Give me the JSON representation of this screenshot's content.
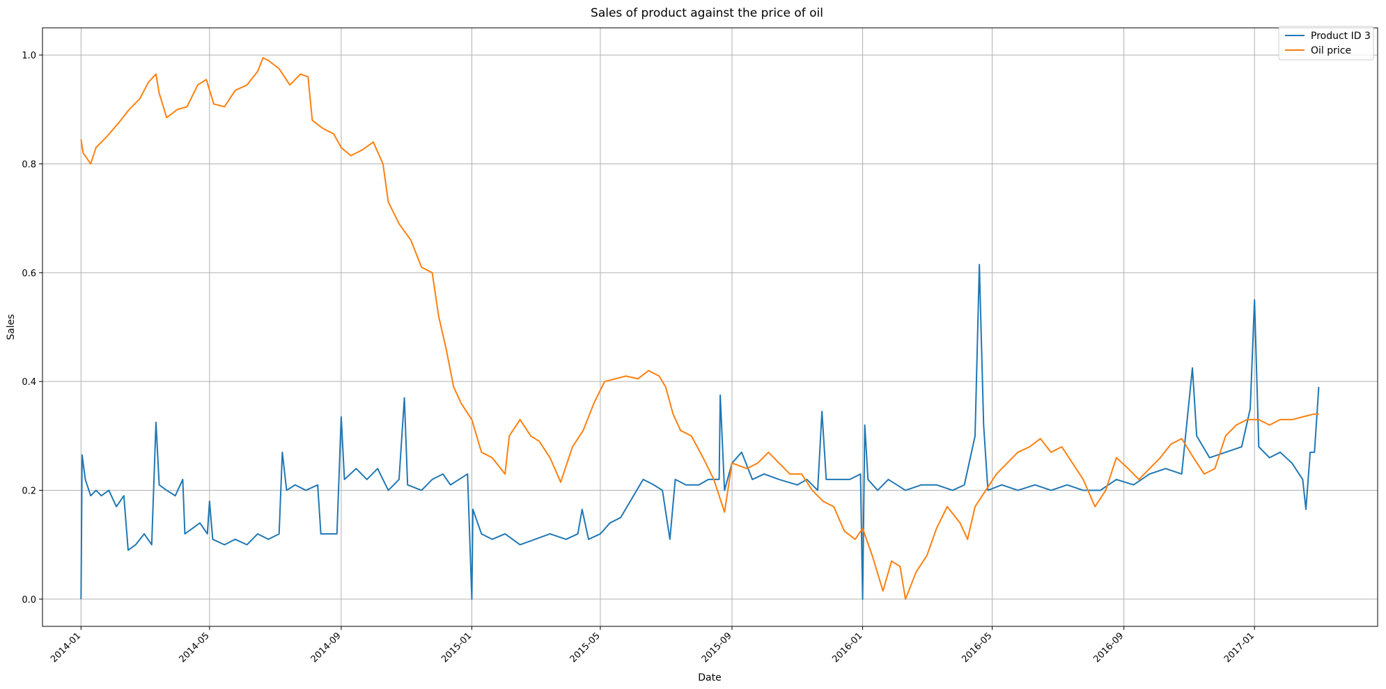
{
  "chart_data": {
    "type": "line",
    "title": "Sales of product against the price of oil",
    "xlabel": "Date",
    "ylabel": "Sales",
    "xlim": [
      "2013-11-26",
      "2017-04-26"
    ],
    "ylim": [
      -0.05,
      1.05
    ],
    "x_ticks": [
      "2014-01",
      "2014-05",
      "2014-09",
      "2015-01",
      "2015-05",
      "2015-09",
      "2016-01",
      "2016-05",
      "2016-09",
      "2017-01"
    ],
    "y_ticks": [
      "0.0",
      "0.2",
      "0.4",
      "0.6",
      "0.8",
      "1.0"
    ],
    "grid": true,
    "legend_position": "top-right",
    "series": [
      {
        "name": "Product ID 3",
        "color": "#1f77b4",
        "points": [
          [
            "2014-01-01",
            0.0
          ],
          [
            "2014-01-02",
            0.265
          ],
          [
            "2014-01-05",
            0.22
          ],
          [
            "2014-01-10",
            0.19
          ],
          [
            "2014-01-15",
            0.2
          ],
          [
            "2014-01-20",
            0.19
          ],
          [
            "2014-01-27",
            0.2
          ],
          [
            "2014-02-03",
            0.17
          ],
          [
            "2014-02-10",
            0.19
          ],
          [
            "2014-02-14",
            0.09
          ],
          [
            "2014-02-21",
            0.1
          ],
          [
            "2014-03-01",
            0.12
          ],
          [
            "2014-03-08",
            0.1
          ],
          [
            "2014-03-12",
            0.325
          ],
          [
            "2014-03-15",
            0.21
          ],
          [
            "2014-03-22",
            0.2
          ],
          [
            "2014-03-30",
            0.19
          ],
          [
            "2014-04-06",
            0.22
          ],
          [
            "2014-04-08",
            0.12
          ],
          [
            "2014-04-15",
            0.13
          ],
          [
            "2014-04-22",
            0.14
          ],
          [
            "2014-04-29",
            0.12
          ],
          [
            "2014-05-01",
            0.18
          ],
          [
            "2014-05-04",
            0.11
          ],
          [
            "2014-05-15",
            0.1
          ],
          [
            "2014-05-25",
            0.11
          ],
          [
            "2014-06-05",
            0.1
          ],
          [
            "2014-06-15",
            0.12
          ],
          [
            "2014-06-25",
            0.11
          ],
          [
            "2014-07-05",
            0.12
          ],
          [
            "2014-07-08",
            0.27
          ],
          [
            "2014-07-12",
            0.2
          ],
          [
            "2014-07-20",
            0.21
          ],
          [
            "2014-07-30",
            0.2
          ],
          [
            "2014-08-10",
            0.21
          ],
          [
            "2014-08-13",
            0.12
          ],
          [
            "2014-08-20",
            0.12
          ],
          [
            "2014-08-28",
            0.12
          ],
          [
            "2014-09-01",
            0.335
          ],
          [
            "2014-09-04",
            0.22
          ],
          [
            "2014-09-15",
            0.24
          ],
          [
            "2014-09-25",
            0.22
          ],
          [
            "2014-10-05",
            0.24
          ],
          [
            "2014-10-15",
            0.2
          ],
          [
            "2014-10-25",
            0.22
          ],
          [
            "2014-10-30",
            0.37
          ],
          [
            "2014-11-02",
            0.21
          ],
          [
            "2014-11-15",
            0.2
          ],
          [
            "2014-11-25",
            0.22
          ],
          [
            "2014-12-05",
            0.23
          ],
          [
            "2014-12-12",
            0.21
          ],
          [
            "2014-12-20",
            0.22
          ],
          [
            "2014-12-28",
            0.23
          ],
          [
            "2015-01-01",
            0.0
          ],
          [
            "2015-01-02",
            0.165
          ],
          [
            "2015-01-10",
            0.12
          ],
          [
            "2015-01-20",
            0.11
          ],
          [
            "2015-02-01",
            0.12
          ],
          [
            "2015-02-15",
            0.1
          ],
          [
            "2015-03-01",
            0.11
          ],
          [
            "2015-03-15",
            0.12
          ],
          [
            "2015-03-30",
            0.11
          ],
          [
            "2015-04-10",
            0.12
          ],
          [
            "2015-04-14",
            0.165
          ],
          [
            "2015-04-20",
            0.11
          ],
          [
            "2015-05-01",
            0.12
          ],
          [
            "2015-05-10",
            0.14
          ],
          [
            "2015-05-20",
            0.15
          ],
          [
            "2015-06-01",
            0.19
          ],
          [
            "2015-06-10",
            0.22
          ],
          [
            "2015-06-20",
            0.21
          ],
          [
            "2015-06-28",
            0.2
          ],
          [
            "2015-07-05",
            0.11
          ],
          [
            "2015-07-10",
            0.22
          ],
          [
            "2015-07-20",
            0.21
          ],
          [
            "2015-08-01",
            0.21
          ],
          [
            "2015-08-10",
            0.22
          ],
          [
            "2015-08-20",
            0.22
          ],
          [
            "2015-08-21",
            0.375
          ],
          [
            "2015-08-25",
            0.2
          ],
          [
            "2015-09-01",
            0.25
          ],
          [
            "2015-09-10",
            0.27
          ],
          [
            "2015-09-20",
            0.22
          ],
          [
            "2015-10-01",
            0.23
          ],
          [
            "2015-10-15",
            0.22
          ],
          [
            "2015-11-01",
            0.21
          ],
          [
            "2015-11-10",
            0.22
          ],
          [
            "2015-11-20",
            0.2
          ],
          [
            "2015-11-24",
            0.345
          ],
          [
            "2015-11-28",
            0.22
          ],
          [
            "2015-12-10",
            0.22
          ],
          [
            "2015-12-20",
            0.22
          ],
          [
            "2015-12-30",
            0.23
          ],
          [
            "2016-01-01",
            0.0
          ],
          [
            "2016-01-03",
            0.32
          ],
          [
            "2016-01-06",
            0.22
          ],
          [
            "2016-01-15",
            0.2
          ],
          [
            "2016-01-25",
            0.22
          ],
          [
            "2016-02-10",
            0.2
          ],
          [
            "2016-02-25",
            0.21
          ],
          [
            "2016-03-10",
            0.21
          ],
          [
            "2016-03-25",
            0.2
          ],
          [
            "2016-04-05",
            0.21
          ],
          [
            "2016-04-15",
            0.3
          ],
          [
            "2016-04-19",
            0.615
          ],
          [
            "2016-04-23",
            0.32
          ],
          [
            "2016-04-27",
            0.2
          ],
          [
            "2016-05-10",
            0.21
          ],
          [
            "2016-05-25",
            0.2
          ],
          [
            "2016-06-10",
            0.21
          ],
          [
            "2016-06-25",
            0.2
          ],
          [
            "2016-07-10",
            0.21
          ],
          [
            "2016-07-25",
            0.2
          ],
          [
            "2016-08-10",
            0.2
          ],
          [
            "2016-08-25",
            0.22
          ],
          [
            "2016-09-10",
            0.21
          ],
          [
            "2016-09-25",
            0.23
          ],
          [
            "2016-10-10",
            0.24
          ],
          [
            "2016-10-25",
            0.23
          ],
          [
            "2016-11-04",
            0.425
          ],
          [
            "2016-11-08",
            0.3
          ],
          [
            "2016-11-20",
            0.26
          ],
          [
            "2016-12-05",
            0.27
          ],
          [
            "2016-12-20",
            0.28
          ],
          [
            "2016-12-28",
            0.35
          ],
          [
            "2017-01-01",
            0.55
          ],
          [
            "2017-01-05",
            0.28
          ],
          [
            "2017-01-15",
            0.26
          ],
          [
            "2017-01-25",
            0.27
          ],
          [
            "2017-02-05",
            0.25
          ],
          [
            "2017-02-15",
            0.22
          ],
          [
            "2017-02-18",
            0.165
          ],
          [
            "2017-02-22",
            0.27
          ],
          [
            "2017-02-26",
            0.27
          ],
          [
            "2017-03-02",
            0.39
          ]
        ]
      },
      {
        "name": "Oil price",
        "color": "#ff7f0e",
        "points": [
          [
            "2014-01-01",
            0.845
          ],
          [
            "2014-01-03",
            0.82
          ],
          [
            "2014-01-10",
            0.8
          ],
          [
            "2014-01-15",
            0.83
          ],
          [
            "2014-01-25",
            0.85
          ],
          [
            "2014-02-05",
            0.875
          ],
          [
            "2014-02-15",
            0.9
          ],
          [
            "2014-02-25",
            0.92
          ],
          [
            "2014-03-05",
            0.95
          ],
          [
            "2014-03-12",
            0.965
          ],
          [
            "2014-03-15",
            0.93
          ],
          [
            "2014-03-22",
            0.885
          ],
          [
            "2014-04-01",
            0.9
          ],
          [
            "2014-04-10",
            0.905
          ],
          [
            "2014-04-20",
            0.945
          ],
          [
            "2014-04-28",
            0.955
          ],
          [
            "2014-05-05",
            0.91
          ],
          [
            "2014-05-15",
            0.905
          ],
          [
            "2014-05-25",
            0.935
          ],
          [
            "2014-06-05",
            0.945
          ],
          [
            "2014-06-15",
            0.97
          ],
          [
            "2014-06-20",
            0.995
          ],
          [
            "2014-06-25",
            0.99
          ],
          [
            "2014-07-05",
            0.975
          ],
          [
            "2014-07-15",
            0.945
          ],
          [
            "2014-07-25",
            0.965
          ],
          [
            "2014-08-01",
            0.96
          ],
          [
            "2014-08-05",
            0.88
          ],
          [
            "2014-08-15",
            0.865
          ],
          [
            "2014-08-25",
            0.855
          ],
          [
            "2014-09-01",
            0.83
          ],
          [
            "2014-09-10",
            0.815
          ],
          [
            "2014-09-20",
            0.825
          ],
          [
            "2014-10-01",
            0.84
          ],
          [
            "2014-10-10",
            0.8
          ],
          [
            "2014-10-15",
            0.73
          ],
          [
            "2014-10-25",
            0.69
          ],
          [
            "2014-11-05",
            0.66
          ],
          [
            "2014-11-15",
            0.61
          ],
          [
            "2014-11-25",
            0.6
          ],
          [
            "2014-12-01",
            0.52
          ],
          [
            "2014-12-08",
            0.46
          ],
          [
            "2014-12-15",
            0.39
          ],
          [
            "2014-12-22",
            0.36
          ],
          [
            "2015-01-01",
            0.33
          ],
          [
            "2015-01-10",
            0.27
          ],
          [
            "2015-01-20",
            0.26
          ],
          [
            "2015-02-01",
            0.23
          ],
          [
            "2015-02-05",
            0.3
          ],
          [
            "2015-02-15",
            0.33
          ],
          [
            "2015-02-25",
            0.3
          ],
          [
            "2015-03-05",
            0.29
          ],
          [
            "2015-03-15",
            0.26
          ],
          [
            "2015-03-25",
            0.215
          ],
          [
            "2015-04-05",
            0.28
          ],
          [
            "2015-04-15",
            0.31
          ],
          [
            "2015-04-25",
            0.36
          ],
          [
            "2015-05-05",
            0.4
          ],
          [
            "2015-05-15",
            0.405
          ],
          [
            "2015-05-25",
            0.41
          ],
          [
            "2015-06-05",
            0.405
          ],
          [
            "2015-06-15",
            0.42
          ],
          [
            "2015-06-25",
            0.41
          ],
          [
            "2015-07-01",
            0.39
          ],
          [
            "2015-07-08",
            0.34
          ],
          [
            "2015-07-15",
            0.31
          ],
          [
            "2015-07-25",
            0.3
          ],
          [
            "2015-08-05",
            0.26
          ],
          [
            "2015-08-15",
            0.22
          ],
          [
            "2015-08-25",
            0.16
          ],
          [
            "2015-09-01",
            0.25
          ],
          [
            "2015-09-15",
            0.24
          ],
          [
            "2015-09-25",
            0.25
          ],
          [
            "2015-10-05",
            0.27
          ],
          [
            "2015-10-15",
            0.25
          ],
          [
            "2015-10-25",
            0.23
          ],
          [
            "2015-11-05",
            0.23
          ],
          [
            "2015-11-15",
            0.2
          ],
          [
            "2015-11-25",
            0.18
          ],
          [
            "2015-12-05",
            0.17
          ],
          [
            "2015-12-15",
            0.125
          ],
          [
            "2015-12-25",
            0.11
          ],
          [
            "2016-01-01",
            0.13
          ],
          [
            "2016-01-10",
            0.08
          ],
          [
            "2016-01-20",
            0.015
          ],
          [
            "2016-01-28",
            0.07
          ],
          [
            "2016-02-05",
            0.06
          ],
          [
            "2016-02-10",
            0.0
          ],
          [
            "2016-02-20",
            0.05
          ],
          [
            "2016-03-01",
            0.08
          ],
          [
            "2016-03-10",
            0.13
          ],
          [
            "2016-03-20",
            0.17
          ],
          [
            "2016-04-01",
            0.14
          ],
          [
            "2016-04-08",
            0.11
          ],
          [
            "2016-04-15",
            0.17
          ],
          [
            "2016-04-25",
            0.2
          ],
          [
            "2016-05-05",
            0.23
          ],
          [
            "2016-05-15",
            0.25
          ],
          [
            "2016-05-25",
            0.27
          ],
          [
            "2016-06-05",
            0.28
          ],
          [
            "2016-06-15",
            0.295
          ],
          [
            "2016-06-25",
            0.27
          ],
          [
            "2016-07-05",
            0.28
          ],
          [
            "2016-07-15",
            0.25
          ],
          [
            "2016-07-25",
            0.22
          ],
          [
            "2016-08-05",
            0.17
          ],
          [
            "2016-08-15",
            0.2
          ],
          [
            "2016-08-25",
            0.26
          ],
          [
            "2016-09-05",
            0.24
          ],
          [
            "2016-09-15",
            0.22
          ],
          [
            "2016-09-25",
            0.24
          ],
          [
            "2016-10-05",
            0.26
          ],
          [
            "2016-10-15",
            0.285
          ],
          [
            "2016-10-25",
            0.295
          ],
          [
            "2016-11-05",
            0.26
          ],
          [
            "2016-11-15",
            0.23
          ],
          [
            "2016-11-25",
            0.24
          ],
          [
            "2016-12-05",
            0.3
          ],
          [
            "2016-12-15",
            0.32
          ],
          [
            "2016-12-25",
            0.33
          ],
          [
            "2017-01-05",
            0.33
          ],
          [
            "2017-01-15",
            0.32
          ],
          [
            "2017-01-25",
            0.33
          ],
          [
            "2017-02-05",
            0.33
          ],
          [
            "2017-02-15",
            0.335
          ],
          [
            "2017-02-25",
            0.34
          ],
          [
            "2017-03-02",
            0.34
          ]
        ]
      }
    ]
  }
}
